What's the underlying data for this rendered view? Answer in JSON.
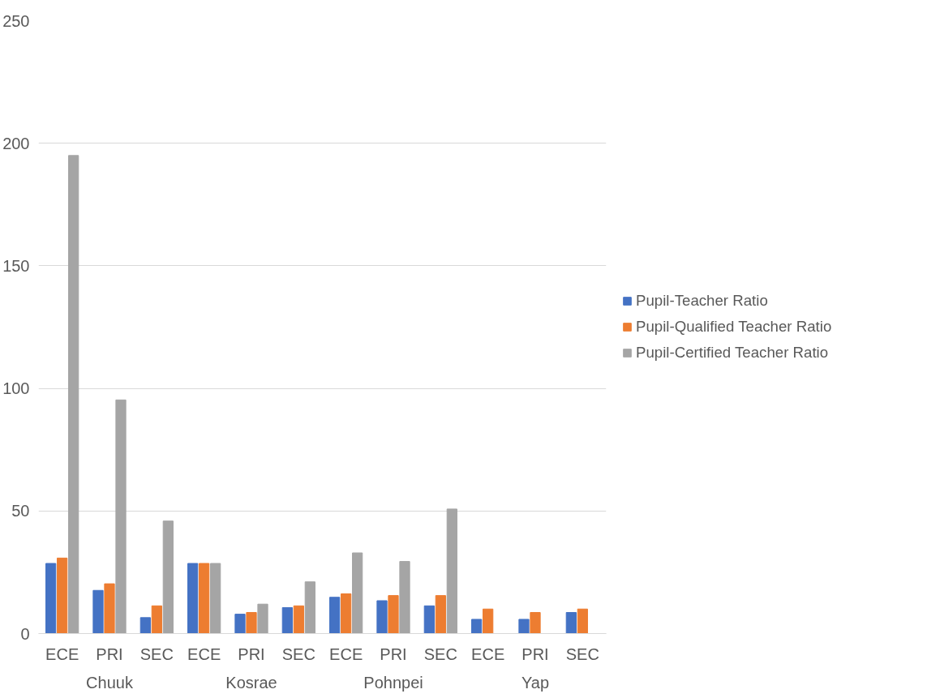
{
  "chart_data": {
    "type": "bar",
    "categories": [
      "ECE",
      "PRI",
      "SEC",
      "ECE",
      "PRI",
      "SEC",
      "ECE",
      "PRI",
      "SEC",
      "ECE",
      "PRI",
      "SEC"
    ],
    "annotations": [
      "Chuuk",
      "Kosrae",
      "Pohnpei",
      "Yap"
    ],
    "series": [
      {
        "name": "Pupil-Teacher Ratio",
        "color": "#4472c4",
        "values": [
          28.6,
          17.6,
          6.5,
          28.6,
          7.9,
          10.6,
          14.8,
          13.4,
          11.3,
          5.8,
          5.8,
          8.6
        ]
      },
      {
        "name": "Pupil-Qualified Teacher Ratio",
        "color": "#ed7d31",
        "values": [
          30.8,
          20.3,
          11.3,
          28.6,
          8.6,
          11.3,
          16.2,
          15.5,
          15.5,
          10.0,
          8.6,
          10.0
        ]
      },
      {
        "name": "Pupil-Certified Teacher Ratio",
        "color": "#a5a5a5",
        "values": [
          195,
          95.3,
          45.9,
          28.6,
          12.0,
          21.1,
          32.9,
          29.4,
          50.8,
          null,
          null,
          null
        ]
      }
    ],
    "ylim": [
      0,
      250
    ],
    "yticks": [
      0,
      50,
      100,
      150,
      200,
      250
    ],
    "grid": "y",
    "legend": "right"
  }
}
